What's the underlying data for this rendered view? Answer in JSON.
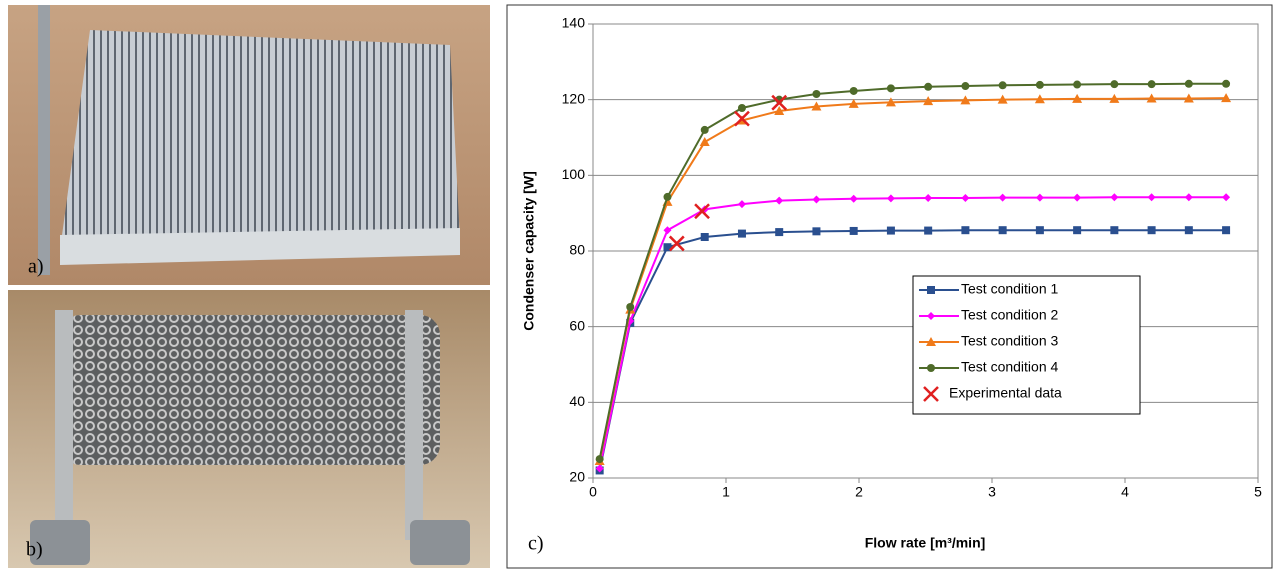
{
  "panels": {
    "a": "a)",
    "b": "b)",
    "c": "c)"
  },
  "chart_data": {
    "type": "line",
    "x_label": "Flow rate [m³/min]",
    "y_label": "Condenser capacity [W]",
    "x": [
      0.05,
      0.28,
      0.56,
      0.84,
      1.12,
      1.4,
      1.68,
      1.96,
      2.24,
      2.52,
      2.8,
      3.08,
      3.36,
      3.64,
      3.92,
      4.2,
      4.48,
      4.76
    ],
    "series": [
      {
        "name": "Test condition 1",
        "color": "#2a4f8f",
        "marker": "square",
        "line": true,
        "values": [
          22,
          61,
          81,
          83.7,
          84.6,
          85,
          85.2,
          85.3,
          85.4,
          85.4,
          85.5,
          85.5,
          85.5,
          85.5,
          85.5,
          85.5,
          85.5,
          85.5
        ]
      },
      {
        "name": "Test condition 2",
        "color": "#ff00ff",
        "marker": "diamond",
        "line": true,
        "values": [
          22.5,
          61.5,
          85.5,
          91,
          92.4,
          93.3,
          93.6,
          93.8,
          93.9,
          94,
          94,
          94.1,
          94.1,
          94.1,
          94.2,
          94.2,
          94.2,
          94.2
        ]
      },
      {
        "name": "Test condition 3",
        "color": "#f07a1a",
        "marker": "triangle",
        "line": true,
        "values": [
          24.5,
          64.5,
          93,
          108.8,
          114.5,
          117,
          118.2,
          118.9,
          119.3,
          119.6,
          119.8,
          120,
          120.1,
          120.2,
          120.2,
          120.3,
          120.3,
          120.4
        ]
      },
      {
        "name": "Test condition 4",
        "color": "#4f6b2a",
        "marker": "circle",
        "line": true,
        "values": [
          25,
          65.2,
          94.3,
          112,
          117.8,
          120,
          121.5,
          122.3,
          123,
          123.4,
          123.6,
          123.8,
          123.9,
          124,
          124.1,
          124.1,
          124.2,
          124.2
        ]
      },
      {
        "name": "Experimental data",
        "color": "#e02020",
        "marker": "cross",
        "line": false,
        "x": [
          0.63,
          0.82,
          1.12,
          1.4
        ],
        "values": [
          82,
          90.5,
          115,
          119.2
        ]
      }
    ],
    "xlim": [
      0,
      5
    ],
    "xticks": [
      0,
      1,
      2,
      3,
      4,
      5
    ],
    "ylim": [
      20,
      140
    ],
    "yticks": [
      20,
      40,
      60,
      80,
      100,
      120,
      140
    ],
    "grid": true,
    "legend_position": "right"
  }
}
